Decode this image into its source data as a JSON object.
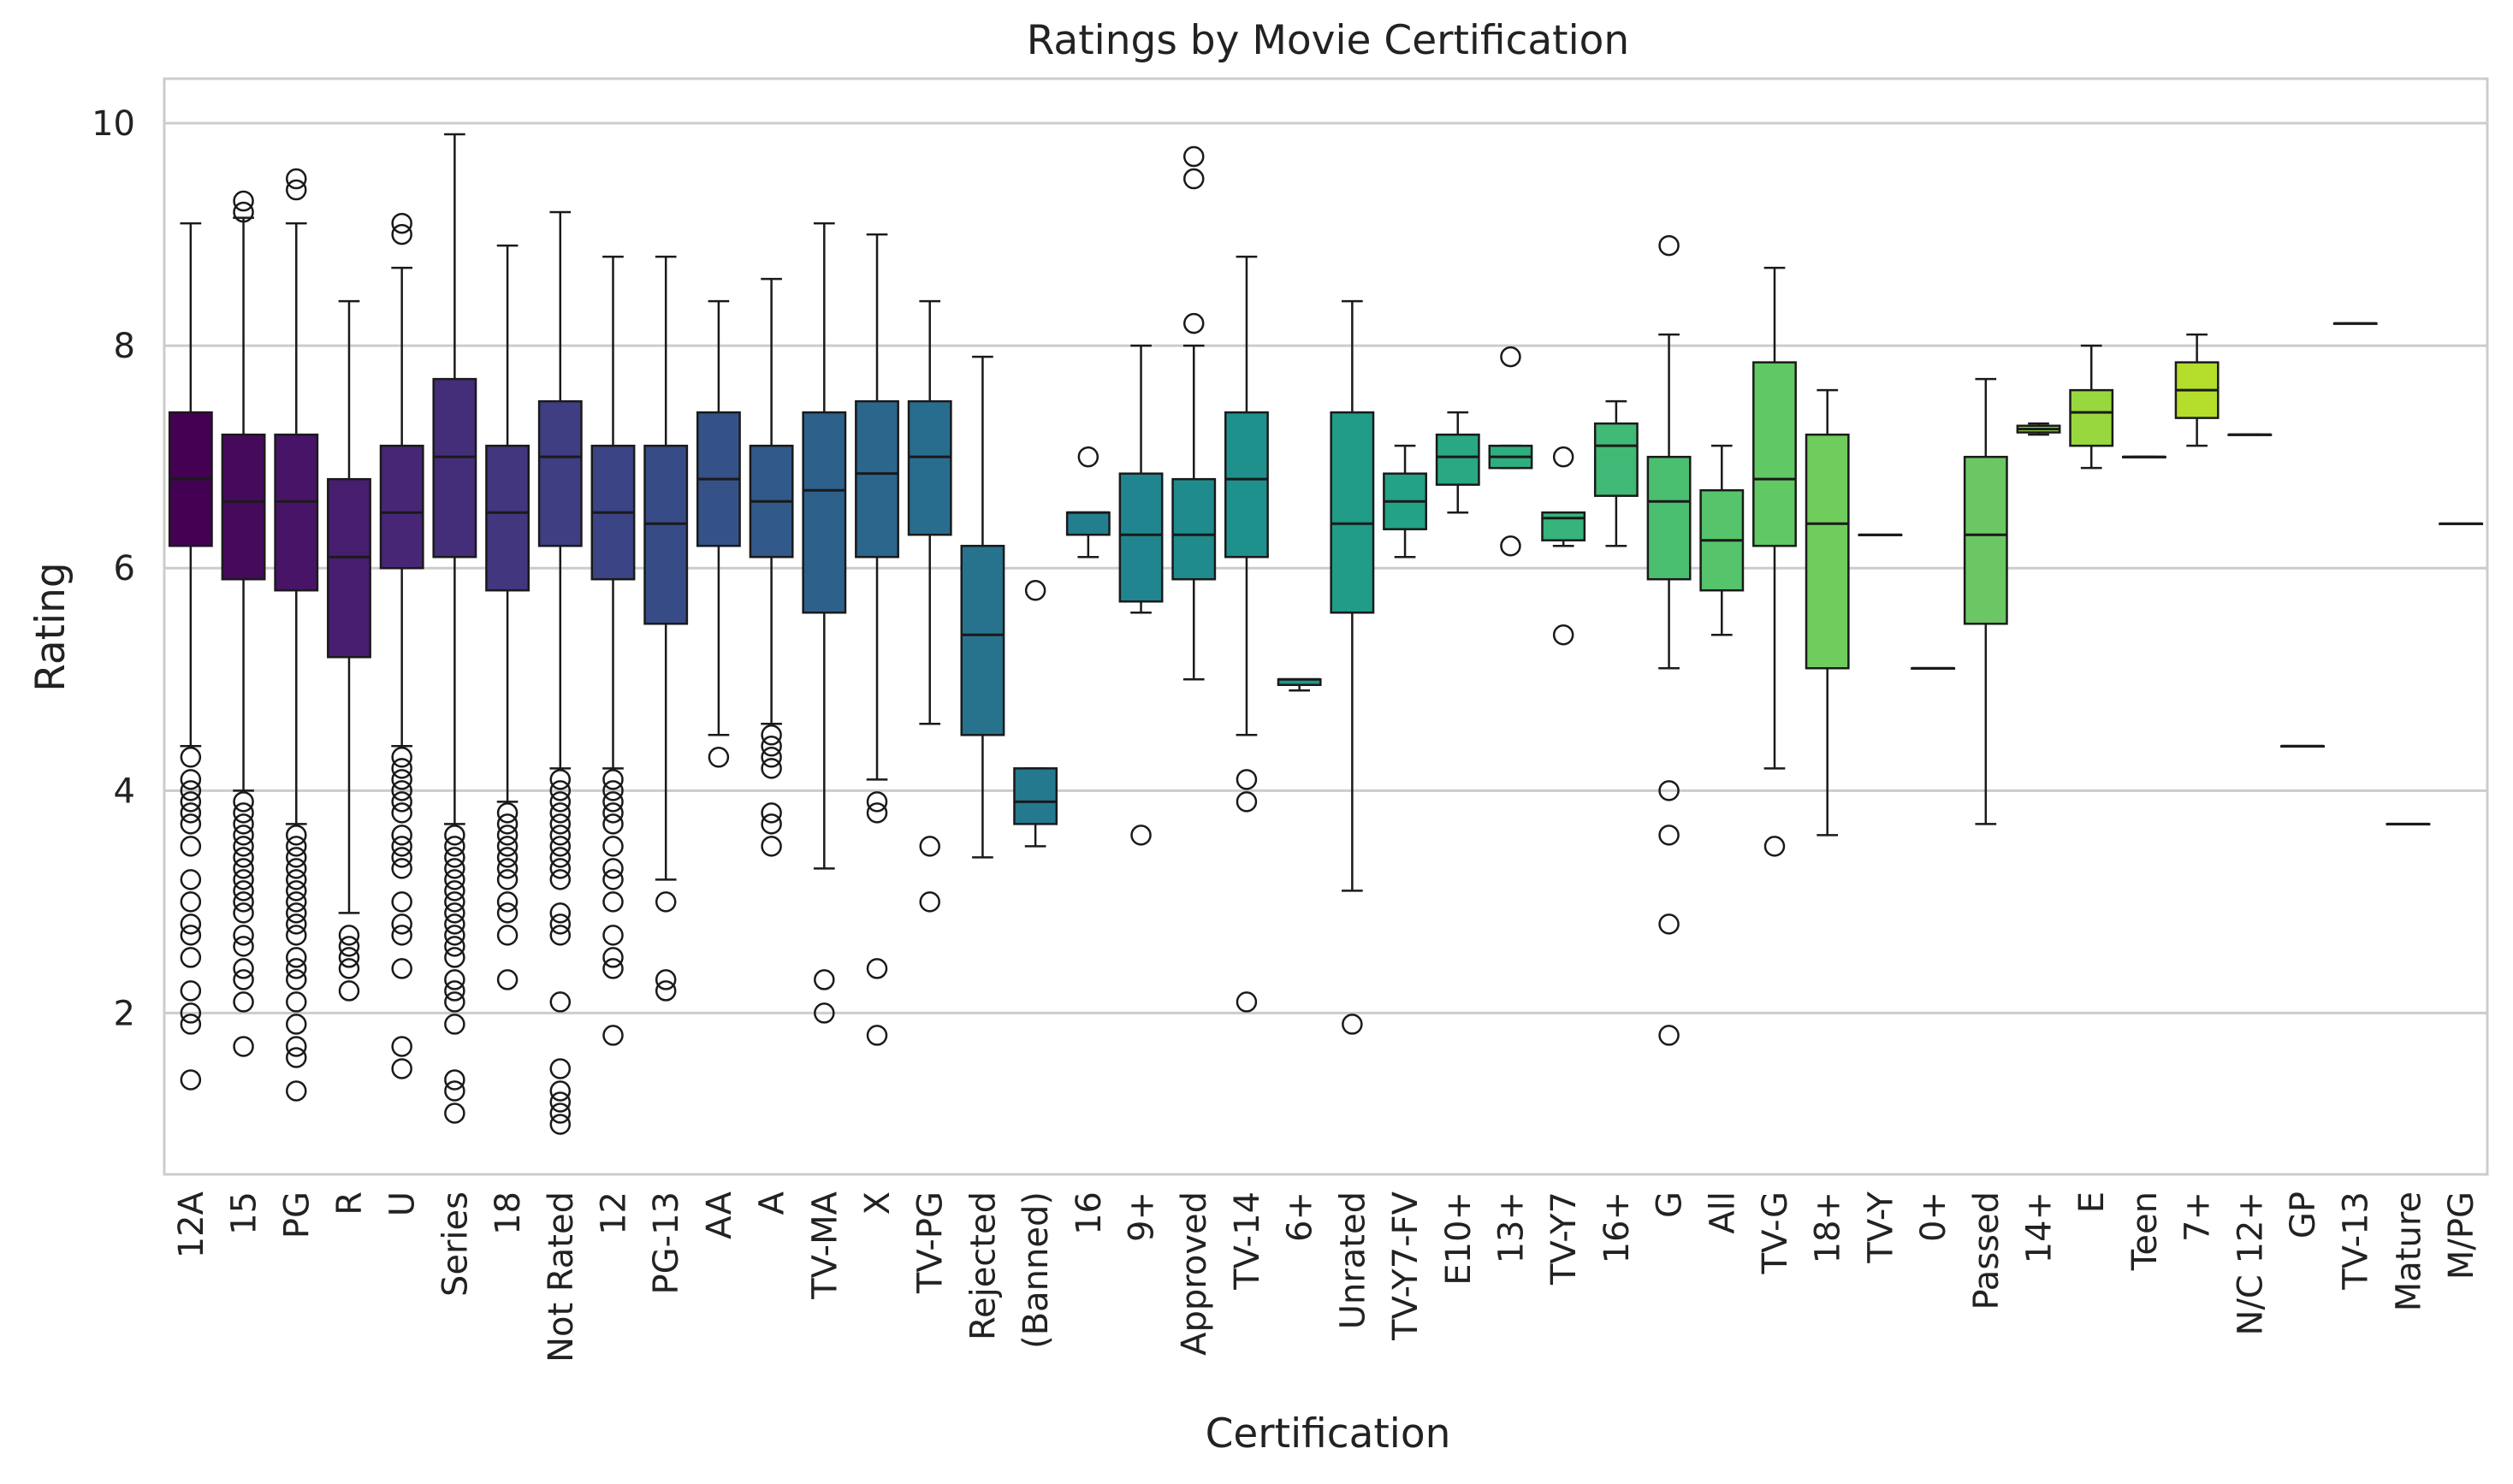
{
  "chart_data": {
    "type": "box",
    "title": "Ratings by Movie Certification",
    "xlabel": "Certification",
    "ylabel": "Rating",
    "ylim": [
      0.55,
      10.4
    ],
    "yticks": [
      2,
      4,
      6,
      8,
      10
    ],
    "grid": "horizontal",
    "palette": "viridis",
    "categories": [
      {
        "label": "12A",
        "label_lines": [
          "12A"
        ],
        "color": "#440154",
        "whisker_low": 4.4,
        "q1": 6.2,
        "median": 6.8,
        "q3": 7.4,
        "whisker_high": 9.1,
        "outliers": [
          4.3,
          4.1,
          4.0,
          3.9,
          3.8,
          3.7,
          3.5,
          3.2,
          3.0,
          2.8,
          2.7,
          2.5,
          2.2,
          2.0,
          1.9,
          1.4
        ]
      },
      {
        "label": "15",
        "label_lines": [
          "15"
        ],
        "color": "#460a5d",
        "whisker_low": 4.0,
        "q1": 5.9,
        "median": 6.6,
        "q3": 7.2,
        "whisker_high": 9.15,
        "outliers": [
          9.3,
          9.2,
          3.9,
          3.8,
          3.7,
          3.6,
          3.5,
          3.4,
          3.3,
          3.2,
          3.1,
          3.0,
          2.9,
          2.7,
          2.6,
          2.4,
          2.3,
          2.1,
          1.7
        ]
      },
      {
        "label": "PG",
        "label_lines": [
          "PG"
        ],
        "color": "#481467",
        "whisker_low": 3.7,
        "q1": 5.8,
        "median": 6.6,
        "q3": 7.2,
        "whisker_high": 9.1,
        "outliers": [
          9.5,
          9.4,
          3.6,
          3.5,
          3.4,
          3.3,
          3.2,
          3.1,
          3.0,
          2.9,
          2.8,
          2.7,
          2.5,
          2.4,
          2.3,
          2.1,
          1.9,
          1.7,
          1.6,
          1.3
        ]
      },
      {
        "label": "R",
        "label_lines": [
          "R"
        ],
        "color": "#471d6f",
        "whisker_low": 2.9,
        "q1": 5.2,
        "median": 6.1,
        "q3": 6.8,
        "whisker_high": 8.4,
        "outliers": [
          2.7,
          2.6,
          2.5,
          2.4,
          2.2
        ]
      },
      {
        "label": "U",
        "label_lines": [
          "U"
        ],
        "color": "#472676",
        "whisker_low": 4.4,
        "q1": 6.0,
        "median": 6.5,
        "q3": 7.1,
        "whisker_high": 8.7,
        "outliers": [
          9.1,
          9.0,
          4.3,
          4.2,
          4.1,
          4.0,
          3.9,
          3.8,
          3.6,
          3.5,
          3.4,
          3.3,
          3.0,
          2.8,
          2.7,
          2.4,
          1.7,
          1.5
        ]
      },
      {
        "label": "Series",
        "label_lines": [
          "Series"
        ],
        "color": "#442e7a",
        "whisker_low": 3.7,
        "q1": 6.1,
        "median": 7.0,
        "q3": 7.7,
        "whisker_high": 9.9,
        "outliers": [
          3.6,
          3.5,
          3.4,
          3.3,
          3.2,
          3.1,
          3.0,
          2.9,
          2.8,
          2.7,
          2.6,
          2.5,
          2.3,
          2.2,
          2.1,
          1.9,
          1.4,
          1.3,
          1.1
        ]
      },
      {
        "label": "18",
        "label_lines": [
          "18"
        ],
        "color": "#42367e",
        "whisker_low": 3.9,
        "q1": 5.8,
        "median": 6.5,
        "q3": 7.1,
        "whisker_high": 8.9,
        "outliers": [
          3.8,
          3.7,
          3.6,
          3.5,
          3.4,
          3.3,
          3.2,
          3.0,
          2.9,
          2.7,
          2.3
        ]
      },
      {
        "label": "Not Rated",
        "label_lines": [
          "Not Rated"
        ],
        "color": "#3f3e82",
        "whisker_low": 4.2,
        "q1": 6.2,
        "median": 7.0,
        "q3": 7.5,
        "whisker_high": 9.2,
        "outliers": [
          4.1,
          4.0,
          3.9,
          3.8,
          3.7,
          3.6,
          3.5,
          3.4,
          3.3,
          3.2,
          2.9,
          2.8,
          2.7,
          2.1,
          1.5,
          1.3,
          1.2,
          1.1,
          1.0
        ]
      },
      {
        "label": "12",
        "label_lines": [
          "12"
        ],
        "color": "#3b4484",
        "whisker_low": 4.2,
        "q1": 5.9,
        "median": 6.5,
        "q3": 7.1,
        "whisker_high": 8.8,
        "outliers": [
          4.1,
          4.0,
          3.9,
          3.8,
          3.7,
          3.5,
          3.3,
          3.2,
          3.0,
          2.7,
          2.5,
          2.4,
          1.8
        ]
      },
      {
        "label": "PG-13",
        "label_lines": [
          "PG-13"
        ],
        "color": "#374b86",
        "whisker_low": 3.2,
        "q1": 5.5,
        "median": 6.4,
        "q3": 7.1,
        "whisker_high": 8.8,
        "outliers": [
          3.0,
          2.3,
          2.2
        ]
      },
      {
        "label": "AA",
        "label_lines": [
          "AA"
        ],
        "color": "#345288",
        "whisker_low": 4.5,
        "q1": 6.2,
        "median": 6.8,
        "q3": 7.4,
        "whisker_high": 8.4,
        "outliers": [
          4.3
        ]
      },
      {
        "label": "A",
        "label_lines": [
          "A"
        ],
        "color": "#31598a",
        "whisker_low": 4.6,
        "q1": 6.1,
        "median": 6.6,
        "q3": 7.1,
        "whisker_high": 8.6,
        "outliers": [
          4.5,
          4.4,
          4.3,
          4.2,
          3.8,
          3.7,
          3.5
        ]
      },
      {
        "label": "TV-MA",
        "label_lines": [
          "TV-MA"
        ],
        "color": "#2e608c",
        "whisker_low": 3.3,
        "q1": 5.6,
        "median": 6.7,
        "q3": 7.4,
        "whisker_high": 9.1,
        "outliers": [
          2.3,
          2.0
        ]
      },
      {
        "label": "X",
        "label_lines": [
          "X"
        ],
        "color": "#2b668d",
        "whisker_low": 4.1,
        "q1": 6.1,
        "median": 6.85,
        "q3": 7.5,
        "whisker_high": 9.0,
        "outliers": [
          3.9,
          3.8,
          2.4,
          1.8
        ]
      },
      {
        "label": "TV-PG",
        "label_lines": [
          "TV-PG"
        ],
        "color": "#296d8e",
        "whisker_low": 4.6,
        "q1": 6.3,
        "median": 7.0,
        "q3": 7.5,
        "whisker_high": 8.4,
        "outliers": [
          3.5,
          3.0
        ]
      },
      {
        "label": "Rejected",
        "label_lines": [
          "Rejected"
        ],
        "color": "#27738e",
        "whisker_low": 3.4,
        "q1": 4.5,
        "median": 5.4,
        "q3": 6.2,
        "whisker_high": 7.9,
        "outliers": []
      },
      {
        "label": "(Banned)",
        "label_lines": [
          "(Banned)"
        ],
        "color": "#25798e",
        "whisker_low": 3.5,
        "q1": 3.7,
        "median": 3.9,
        "q3": 4.2,
        "whisker_high": 4.2,
        "outliers": [
          5.8
        ]
      },
      {
        "label": "16",
        "label_lines": [
          "16"
        ],
        "color": "#227f8e",
        "whisker_low": 6.1,
        "q1": 6.3,
        "median": 6.5,
        "q3": 6.5,
        "whisker_high": 6.5,
        "outliers": [
          7.0
        ]
      },
      {
        "label": "9+",
        "label_lines": [
          "9+"
        ],
        "color": "#20858e",
        "whisker_low": 5.6,
        "q1": 5.7,
        "median": 6.3,
        "q3": 6.85,
        "whisker_high": 8.0,
        "outliers": [
          3.6
        ]
      },
      {
        "label": "Approved",
        "label_lines": [
          "Approved"
        ],
        "color": "#1f8b8d",
        "whisker_low": 5.0,
        "q1": 5.9,
        "median": 6.3,
        "q3": 6.8,
        "whisker_high": 8.0,
        "outliers": [
          9.7,
          9.5,
          8.2
        ]
      },
      {
        "label": "TV-14",
        "label_lines": [
          "TV-14"
        ],
        "color": "#1f918c",
        "whisker_low": 4.5,
        "q1": 6.1,
        "median": 6.8,
        "q3": 7.4,
        "whisker_high": 8.8,
        "outliers": [
          4.1,
          3.9,
          2.1
        ]
      },
      {
        "label": "6+",
        "label_lines": [
          "6+"
        ],
        "color": "#1f978a",
        "whisker_low": 4.9,
        "q1": 4.95,
        "median": 5.0,
        "q3": 5.0,
        "whisker_high": 5.0,
        "outliers": []
      },
      {
        "label": "Unrated",
        "label_lines": [
          "Unrated"
        ],
        "color": "#209c88",
        "whisker_low": 3.1,
        "q1": 5.6,
        "median": 6.4,
        "q3": 7.4,
        "whisker_high": 8.4,
        "outliers": [
          1.9
        ]
      },
      {
        "label": "TV-Y7-FV",
        "label_lines": [
          "TV-Y7-FV"
        ],
        "color": "#24a286",
        "whisker_low": 6.1,
        "q1": 6.35,
        "median": 6.6,
        "q3": 6.85,
        "whisker_high": 7.1,
        "outliers": []
      },
      {
        "label": "E10+",
        "label_lines": [
          "E10+"
        ],
        "color": "#29a883",
        "whisker_low": 6.5,
        "q1": 6.75,
        "median": 7.0,
        "q3": 7.2,
        "whisker_high": 7.4,
        "outliers": []
      },
      {
        "label": "13+",
        "label_lines": [
          "13+"
        ],
        "color": "#2fae7f",
        "whisker_low": 6.9,
        "q1": 6.9,
        "median": 7.0,
        "q3": 7.1,
        "whisker_high": 7.1,
        "outliers": [
          7.9,
          6.2
        ]
      },
      {
        "label": "TV-Y7",
        "label_lines": [
          "TV-Y7"
        ],
        "color": "#37b47b",
        "whisker_low": 6.2,
        "q1": 6.25,
        "median": 6.45,
        "q3": 6.5,
        "whisker_high": 6.5,
        "outliers": [
          7.0,
          5.4
        ]
      },
      {
        "label": "16+",
        "label_lines": [
          "16+"
        ],
        "color": "#40b976",
        "whisker_low": 6.2,
        "q1": 6.65,
        "median": 7.1,
        "q3": 7.3,
        "whisker_high": 7.5,
        "outliers": []
      },
      {
        "label": "G",
        "label_lines": [
          "G"
        ],
        "color": "#4abf70",
        "whisker_low": 5.1,
        "q1": 5.9,
        "median": 6.6,
        "q3": 7.0,
        "whisker_high": 8.1,
        "outliers": [
          8.9,
          4.0,
          3.6,
          2.8,
          1.8
        ]
      },
      {
        "label": "All",
        "label_lines": [
          "All"
        ],
        "color": "#55c46a",
        "whisker_low": 5.4,
        "q1": 5.8,
        "median": 6.25,
        "q3": 6.7,
        "whisker_high": 7.1,
        "outliers": []
      },
      {
        "label": "TV-G",
        "label_lines": [
          "TV-G"
        ],
        "color": "#61c964",
        "whisker_low": 4.2,
        "q1": 6.2,
        "median": 6.8,
        "q3": 7.85,
        "whisker_high": 8.7,
        "outliers": [
          3.5
        ]
      },
      {
        "label": "18+",
        "label_lines": [
          "18+"
        ],
        "color": "#6ecd5c",
        "whisker_low": 3.6,
        "q1": 5.1,
        "median": 6.4,
        "q3": 7.2,
        "whisker_high": 7.6,
        "outliers": []
      },
      {
        "label": "TV-Y",
        "label_lines": [
          "TV-Y"
        ],
        "color": "#7bd155",
        "whisker_low": 6.3,
        "q1": 6.3,
        "median": 6.3,
        "q3": 6.3,
        "whisker_high": 6.3,
        "outliers": []
      },
      {
        "label": "0+",
        "label_lines": [
          "0+"
        ],
        "color": "#89d54d",
        "whisker_low": 5.1,
        "q1": 5.1,
        "median": 5.1,
        "q3": 5.1,
        "whisker_high": 5.1,
        "outliers": []
      },
      {
        "label": "Passed",
        "label_lines": [
          "Passed"
        ],
        "color": "#6bc763",
        "whisker_low": 3.7,
        "q1": 5.5,
        "median": 6.3,
        "q3": 7.0,
        "whisker_high": 7.7,
        "outliers": []
      },
      {
        "label": "14+",
        "label_lines": [
          "14+"
        ],
        "color": "#8fd744",
        "whisker_low": 7.2,
        "q1": 7.22,
        "median": 7.25,
        "q3": 7.28,
        "whisker_high": 7.3,
        "outliers": []
      },
      {
        "label": "E",
        "label_lines": [
          "E"
        ],
        "color": "#98d83e",
        "whisker_low": 6.9,
        "q1": 7.1,
        "median": 7.4,
        "q3": 7.6,
        "whisker_high": 8.0,
        "outliers": []
      },
      {
        "label": "Teen",
        "label_lines": [
          "Teen"
        ],
        "color": "#a5db36",
        "whisker_low": 7.0,
        "q1": 7.0,
        "median": 7.0,
        "q3": 7.0,
        "whisker_high": 7.0,
        "outliers": []
      },
      {
        "label": "7+",
        "label_lines": [
          "7+"
        ],
        "color": "#b4dd2c",
        "whisker_low": 7.1,
        "q1": 7.35,
        "median": 7.6,
        "q3": 7.85,
        "whisker_high": 8.1,
        "outliers": []
      },
      {
        "label": "N/C 12+",
        "label_lines": [
          "N/C 12+"
        ],
        "color": "#c2df23",
        "whisker_low": 7.2,
        "q1": 7.2,
        "median": 7.2,
        "q3": 7.2,
        "whisker_high": 7.2,
        "outliers": []
      },
      {
        "label": "GP",
        "label_lines": [
          "GP"
        ],
        "color": "#d0e11c",
        "whisker_low": 4.4,
        "q1": 4.4,
        "median": 4.4,
        "q3": 4.4,
        "whisker_high": 4.4,
        "outliers": []
      },
      {
        "label": "TV-13",
        "label_lines": [
          "TV-13"
        ],
        "color": "#dde318",
        "whisker_low": 8.2,
        "q1": 8.2,
        "median": 8.2,
        "q3": 8.2,
        "whisker_high": 8.2,
        "outliers": []
      },
      {
        "label": "Mature",
        "label_lines": [
          "Mature"
        ],
        "color": "#ece51b",
        "whisker_low": 3.7,
        "q1": 3.7,
        "median": 3.7,
        "q3": 3.7,
        "whisker_high": 3.7,
        "outliers": []
      },
      {
        "label": "M/PG",
        "label_lines": [
          "M/PG"
        ],
        "color": "#fde725",
        "whisker_low": 6.4,
        "q1": 6.4,
        "median": 6.4,
        "q3": 6.4,
        "whisker_high": 6.4,
        "outliers": []
      }
    ]
  }
}
